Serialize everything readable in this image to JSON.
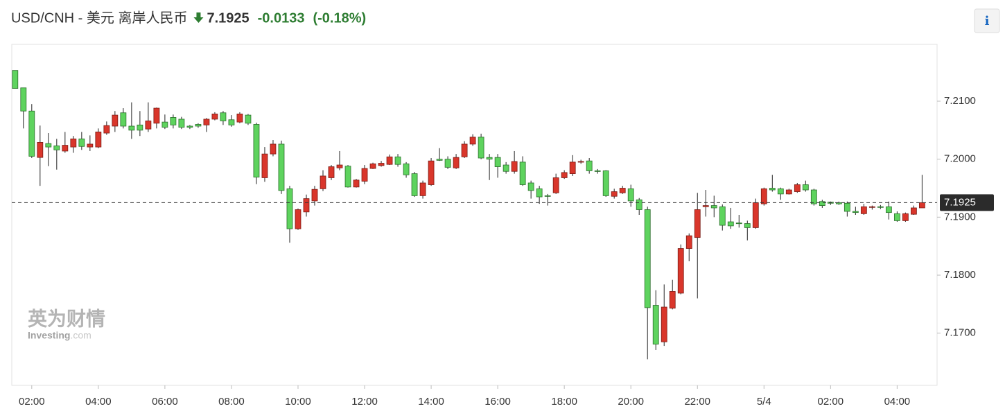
{
  "chart_data": {
    "type": "candlestick",
    "title": "USD/CNH - 美元 离岸人民币",
    "last_price": 7.1925,
    "change": -0.0133,
    "change_percent": "(-0.18%)",
    "info_button": "i",
    "watermark": {
      "cn": "英为财情",
      "brand": "Investing",
      "suffix": ".com"
    },
    "up_color": "#d9362b",
    "down_color": "#5ed35e",
    "x": [
      1.5,
      1.75,
      2,
      2.25,
      2.5,
      2.75,
      3,
      3.25,
      3.5,
      3.75,
      4,
      4.25,
      4.5,
      4.75,
      5,
      5.25,
      5.5,
      5.75,
      6,
      6.25,
      6.5,
      6.75,
      7,
      7.25,
      7.5,
      7.75,
      8,
      8.25,
      8.5,
      8.75,
      9,
      9.25,
      9.5,
      9.75,
      10,
      10.25,
      10.5,
      10.75,
      11,
      11.25,
      11.5,
      11.75,
      12,
      12.25,
      12.5,
      12.75,
      13,
      13.25,
      13.5,
      13.75,
      14,
      14.25,
      14.5,
      14.75,
      15,
      15.25,
      15.5,
      15.75,
      16,
      16.25,
      16.5,
      16.75,
      17,
      17.25,
      17.5,
      17.75,
      18,
      18.25,
      18.5,
      18.75,
      19,
      19.25,
      19.5,
      19.75,
      20,
      20.25,
      20.5,
      20.75,
      21,
      21.25,
      21.5,
      21.75,
      22,
      22.25,
      22.5,
      22.75,
      23,
      23.25,
      23.5,
      23.75,
      24,
      24.25,
      24.5,
      24.75,
      25,
      25.25,
      25.5,
      25.75,
      26,
      26.25,
      26.5,
      26.75,
      27,
      27.25,
      27.5,
      27.75,
      28,
      28.25,
      28.5,
      28.75
    ],
    "open": [
      7.2153,
      7.2123,
      7.2083,
      7.2003,
      7.2027,
      7.2023,
      7.2014,
      7.2021,
      7.2035,
      7.2021,
      7.2021,
      7.2045,
      7.2057,
      7.208,
      7.2057,
      7.2059,
      7.2052,
      7.2062,
      7.2064,
      7.2072,
      7.2069,
      7.2057,
      7.206,
      7.2059,
      7.2069,
      7.208,
      7.2068,
      7.2064,
      7.2076,
      7.206,
      7.1968,
      7.2009,
      7.2026,
      7.1949,
      7.188,
      7.1909,
      7.1928,
      7.1949,
      7.1968,
      7.1985,
      7.1988,
      7.1952,
      7.1962,
      7.1984,
      7.1989,
      7.1991,
      7.2004,
      7.1992,
      7.1975,
      7.1937,
      7.1956,
      7.2,
      7.2,
      7.1985,
      7.2004,
      7.2026,
      7.2038,
      7.2003,
      7.2003,
      7.199,
      7.1979,
      7.1995,
      7.1959,
      7.1949,
      7.1937,
      7.1942,
      7.1968,
      7.1975,
      7.1995,
      7.1997,
      7.198,
      7.198,
      7.1936,
      7.1942,
      7.1949,
      7.193,
      7.1913,
      7.1748,
      7.1685,
      7.1743,
      7.1769,
      7.1846,
      7.1865,
      7.1918,
      7.192,
      7.1918,
      7.1892,
      7.189,
      7.1889,
      7.1882,
      7.1923,
      7.195,
      7.1949,
      7.194,
      7.1944,
      7.1956,
      7.1947,
      7.1927,
      7.1926,
      7.1925,
      7.1924,
      7.191,
      7.1906,
      7.1917,
      7.1918,
      7.1918,
      7.1906,
      7.1894,
      7.1905,
      7.1916
    ],
    "high": [
      7.2153,
      7.2123,
      7.2095,
      7.2058,
      7.2045,
      7.2035,
      7.2047,
      7.204,
      7.2047,
      7.2041,
      7.2053,
      7.2065,
      7.2083,
      7.2088,
      7.2098,
      7.2083,
      7.2098,
      7.2089,
      7.2077,
      7.2077,
      7.2073,
      7.2059,
      7.2062,
      7.2071,
      7.2081,
      7.2083,
      7.2076,
      7.2081,
      7.2078,
      7.2063,
      7.2021,
      7.2033,
      7.2032,
      7.1954,
      7.1915,
      7.1939,
      7.1954,
      7.1981,
      7.199,
      7.2014,
      7.199,
      7.1966,
      7.199,
      7.1994,
      7.1997,
      7.2008,
      7.2009,
      7.1995,
      7.1978,
      7.1963,
      7.2002,
      7.2019,
      7.2005,
      7.2009,
      7.2031,
      7.2043,
      7.2044,
      7.2009,
      7.2009,
      7.1995,
      7.2014,
      7.2005,
      7.1963,
      7.1954,
      7.194,
      7.1975,
      7.1981,
      7.2007,
      7.1999,
      7.2002,
      7.1983,
      7.1981,
      7.1949,
      7.1954,
      7.1956,
      7.1933,
      7.1918,
      7.1774,
      7.1784,
      7.1792,
      7.1853,
      7.1872,
      7.1942,
      7.1947,
      7.1937,
      7.1922,
      7.1916,
      7.1904,
      7.1894,
      7.1932,
      7.1951,
      7.1973,
      7.1951,
      7.1949,
      7.1959,
      7.1963,
      7.1949,
      7.193,
      7.1927,
      7.1927,
      7.1927,
      7.1918,
      7.1923,
      7.192,
      7.1921,
      7.1927,
      7.191,
      7.1908,
      7.192,
      7.1973
    ],
    "low": [
      7.2122,
      7.2053,
      7.2002,
      7.1954,
      7.1988,
      7.1982,
      7.2011,
      7.2011,
      7.2016,
      7.2014,
      7.2019,
      7.2042,
      7.2047,
      7.2053,
      7.2035,
      7.204,
      7.2047,
      7.2053,
      7.2052,
      7.2053,
      7.2052,
      7.2052,
      7.2054,
      7.2047,
      7.2067,
      7.2059,
      7.2056,
      7.2062,
      7.2059,
      7.1957,
      7.1961,
      7.2005,
      7.194,
      7.1856,
      7.1878,
      7.1901,
      7.192,
      7.1945,
      7.1964,
      7.1981,
      7.1951,
      7.1951,
      7.1957,
      7.1983,
      7.1987,
      7.199,
      7.1987,
      7.1968,
      7.1935,
      7.1932,
      7.1954,
      7.1997,
      7.1983,
      7.1983,
      7.2002,
      7.2023,
      7.2,
      7.1964,
      7.1968,
      7.1975,
      7.1975,
      7.1954,
      7.1932,
      7.1923,
      7.192,
      7.194,
      7.1966,
      7.1971,
      7.1992,
      7.1975,
      7.1975,
      7.1935,
      7.1932,
      7.194,
      7.1918,
      7.1904,
      7.1655,
      7.1671,
      7.1678,
      7.1741,
      7.1767,
      7.1824,
      7.176,
      7.1901,
      7.19,
      7.1877,
      7.188,
      7.1882,
      7.186,
      7.188,
      7.192,
      7.1944,
      7.193,
      7.1939,
      7.1942,
      7.1944,
      7.192,
      7.1916,
      7.1921,
      7.1921,
      7.1901,
      7.1904,
      7.1904,
      7.1913,
      7.1914,
      7.1896,
      7.1892,
      7.1892,
      7.1904,
      7.1916
    ],
    "close": [
      7.2122,
      7.2083,
      7.2005,
      7.2029,
      7.2021,
      7.2016,
      7.2024,
      7.2035,
      7.2022,
      7.2026,
      7.2047,
      7.2058,
      7.2076,
      7.2057,
      7.205,
      7.205,
      7.2066,
      7.2088,
      7.2055,
      7.2059,
      7.2055,
      7.2055,
      7.2057,
      7.2069,
      7.2078,
      7.2066,
      7.2059,
      7.2078,
      7.2062,
      7.1969,
      7.2009,
      7.2026,
      7.1946,
      7.188,
      7.1913,
      7.1932,
      7.1948,
      7.1971,
      7.1987,
      7.199,
      7.1952,
      7.1964,
      7.1984,
      7.1992,
      7.1993,
      7.2004,
      7.1991,
      7.1973,
      7.1937,
      7.1959,
      7.1997,
      7.1998,
      7.1986,
      7.2003,
      7.2026,
      7.2038,
      7.2002,
      7.2,
      7.1987,
      7.1979,
      7.1996,
      7.1956,
      7.1946,
      7.1935,
      7.1936,
      7.1968,
      7.1977,
      7.1995,
      7.1996,
      7.198,
      7.1979,
      7.1937,
      7.1944,
      7.195,
      7.1928,
      7.1913,
      7.1744,
      7.1681,
      7.1745,
      7.1772,
      7.1846,
      7.1868,
      7.1913,
      7.192,
      7.1916,
      7.1886,
      7.1885,
      7.1889,
      7.1882,
      7.1925,
      7.1949,
      7.1947,
      7.194,
      7.1947,
      7.1956,
      7.1947,
      7.1923,
      7.192,
      7.1924,
      7.1923,
      7.191,
      7.1908,
      7.1918,
      7.1918,
      7.1917,
      7.1908,
      7.1894,
      7.1906,
      7.1916,
      7.1925
    ],
    "xlim": [
      1.4,
      29.2
    ],
    "xticks": [
      {
        "value": 2,
        "label": "02:00"
      },
      {
        "value": 4,
        "label": "04:00"
      },
      {
        "value": 6,
        "label": "06:00"
      },
      {
        "value": 8,
        "label": "08:00"
      },
      {
        "value": 10,
        "label": "10:00"
      },
      {
        "value": 12,
        "label": "12:00"
      },
      {
        "value": 14,
        "label": "14:00"
      },
      {
        "value": 16,
        "label": "16:00"
      },
      {
        "value": 18,
        "label": "18:00"
      },
      {
        "value": 20,
        "label": "20:00"
      },
      {
        "value": 22,
        "label": "22:00"
      },
      {
        "value": 24,
        "label": "5/4"
      },
      {
        "value": 26,
        "label": "02:00"
      },
      {
        "value": 28,
        "label": "04:00"
      }
    ],
    "ylim": [
      7.161,
      7.2198
    ],
    "yticks": [
      {
        "value": 7.17,
        "label": "7.1700"
      },
      {
        "value": 7.18,
        "label": "7.1800"
      },
      {
        "value": 7.19,
        "label": "7.1900"
      },
      {
        "value": 7.2,
        "label": "7.2000"
      },
      {
        "value": 7.21,
        "label": "7.2100"
      }
    ],
    "grid": false
  }
}
